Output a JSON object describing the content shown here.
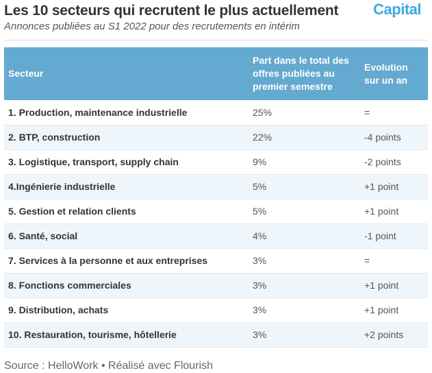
{
  "header": {
    "title": "Les 10 secteurs qui recrutent le plus actuellement",
    "subtitle": "Annonces publiées au S1 2022 pour des recrutements en intérim",
    "logo": "Capital"
  },
  "table": {
    "columns": [
      "Secteur",
      "Part dans le total des offres publiées au premier semestre",
      "Evolution sur un an"
    ],
    "rows": [
      {
        "sector": "1. Production, maintenance industrielle",
        "share": "25%",
        "evolution": "="
      },
      {
        "sector": "2. BTP, construction",
        "share": "22%",
        "evolution": "-4 points"
      },
      {
        "sector": "3. Logistique, transport, supply chain",
        "share": "9%",
        "evolution": "-2 points"
      },
      {
        "sector": "4.Ingénierie industrielle",
        "share": "5%",
        "evolution": "+1 point"
      },
      {
        "sector": "5. Gestion et relation clients",
        "share": "5%",
        "evolution": "+1 point"
      },
      {
        "sector": "6. Santé, social",
        "share": "4%",
        "evolution": "-1 point"
      },
      {
        "sector": "7. Services à la personne et aux entreprises",
        "share": "3%",
        "evolution": "="
      },
      {
        "sector": "8. Fonctions commerciales",
        "share": "3%",
        "evolution": "+1 point"
      },
      {
        "sector": "9. Distribution, achats",
        "share": "3%",
        "evolution": "+1 point"
      },
      {
        "sector": "10. Restauration, tourisme, hôtellerie",
        "share": "3%",
        "evolution": "+2 points"
      }
    ]
  },
  "footer": {
    "source": "Source : HelloWork • Réalisé avec Flourish"
  },
  "colors": {
    "header_bg": "#64a9cf",
    "row_alt_bg": "#eef5fb",
    "logo": "#3aa9df"
  }
}
